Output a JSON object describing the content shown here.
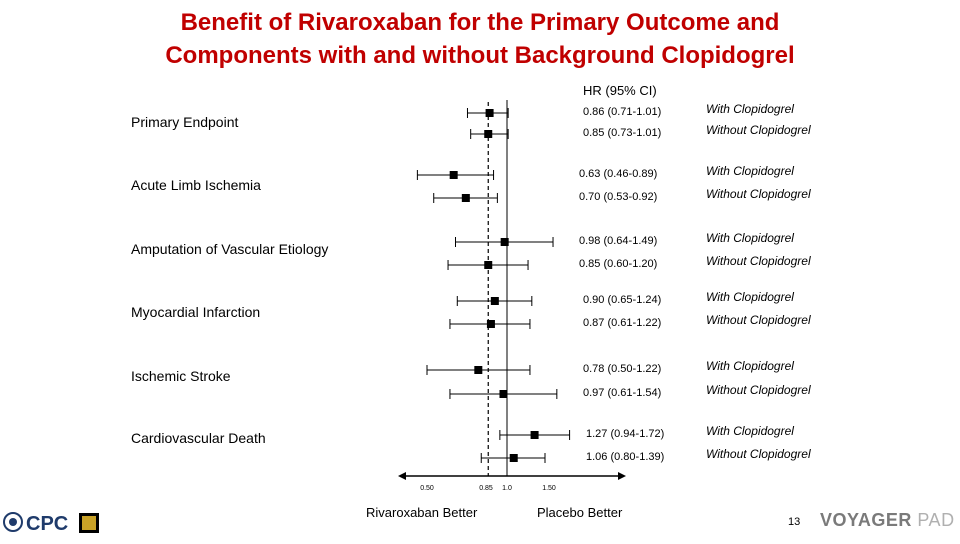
{
  "title_line1": "Benefit of Rivaroxaban for the Primary Outcome and",
  "title_line2": "Components with and without Background Clopidogrel",
  "hr_header": "HR (95% CI)",
  "footer": {
    "rivaroxaban_better": "Rivaroxaban Better",
    "placebo_better": "Placebo Better",
    "page_number": "13",
    "logo_left_text": "CPC",
    "logo_right_voyager": "VOYAGER",
    "logo_right_pad": "PAD"
  },
  "colors": {
    "title": "#c00000",
    "markers": "#000000"
  },
  "chart_data": {
    "type": "forest",
    "x_ticks": [
      "0.50",
      "0.85",
      "1.0",
      "1.50"
    ],
    "reference_line": 1.0,
    "dashed_line": 0.85,
    "categories": [
      {
        "label": "Primary Endpoint",
        "rows": [
          {
            "group": "With Clopidogrel",
            "hr": 0.86,
            "lo": 0.71,
            "hi": 1.01,
            "text": "0.86 (0.71-1.01)"
          },
          {
            "group": "Without Clopidogrel",
            "hr": 0.85,
            "lo": 0.73,
            "hi": 1.01,
            "text": "0.85 (0.73-1.01)"
          }
        ]
      },
      {
        "label": "Acute Limb Ischemia",
        "rows": [
          {
            "group": "With Clopidogrel",
            "hr": 0.63,
            "lo": 0.46,
            "hi": 0.89,
            "text": "0.63 (0.46-0.89)"
          },
          {
            "group": "Without Clopidogrel",
            "hr": 0.7,
            "lo": 0.53,
            "hi": 0.92,
            "text": "0.70 (0.53-0.92)"
          }
        ]
      },
      {
        "label": "Amputation of Vascular Etiology",
        "rows": [
          {
            "group": "With Clopidogrel",
            "hr": 0.98,
            "lo": 0.64,
            "hi": 1.49,
            "text": "0.98 (0.64-1.49)"
          },
          {
            "group": "Without Clopidogrel",
            "hr": 0.85,
            "lo": 0.6,
            "hi": 1.2,
            "text": "0.85 (0.60-1.20)"
          }
        ]
      },
      {
        "label": "Myocardial Infarction",
        "rows": [
          {
            "group": "With Clopidogrel",
            "hr": 0.9,
            "lo": 0.65,
            "hi": 1.24,
            "text": "0.90 (0.65-1.24)"
          },
          {
            "group": "Without Clopidogrel",
            "hr": 0.87,
            "lo": 0.61,
            "hi": 1.22,
            "text": "0.87 (0.61-1.22)"
          }
        ]
      },
      {
        "label": "Ischemic Stroke",
        "rows": [
          {
            "group": "With Clopidogrel",
            "hr": 0.78,
            "lo": 0.5,
            "hi": 1.22,
            "text": "0.78 (0.50-1.22)"
          },
          {
            "group": "Without Clopidogrel",
            "hr": 0.97,
            "lo": 0.61,
            "hi": 1.54,
            "text": "0.97 (0.61-1.54)"
          }
        ]
      },
      {
        "label": "Cardiovascular Death",
        "rows": [
          {
            "group": "With Clopidogrel",
            "hr": 1.27,
            "lo": 0.94,
            "hi": 1.72,
            "text": "1.27 (0.94-1.72)"
          },
          {
            "group": "Without Clopidogrel",
            "hr": 1.06,
            "lo": 0.8,
            "hi": 1.39,
            "text": "1.06 (0.80-1.39)"
          }
        ]
      }
    ]
  }
}
